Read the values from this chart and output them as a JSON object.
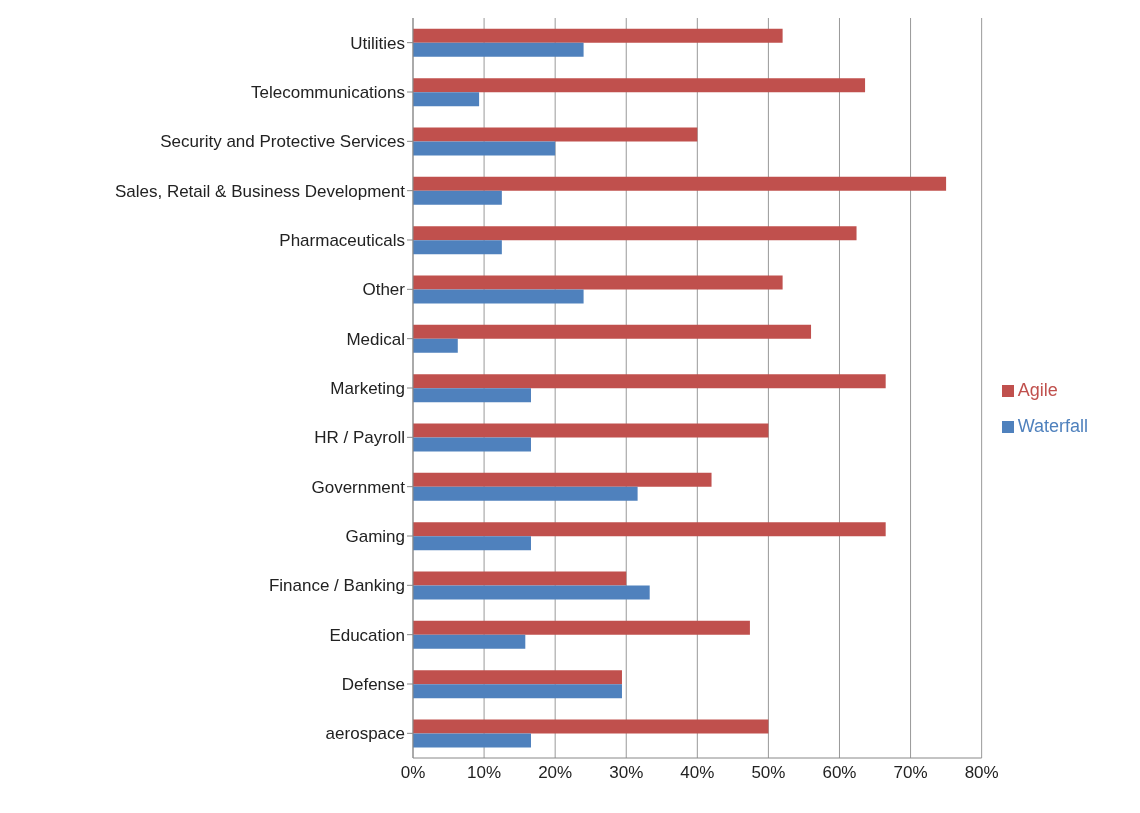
{
  "chart_data": {
    "type": "bar",
    "orientation": "horizontal",
    "categories": [
      "Utilities",
      "Telecommunications",
      "Security and Protective Services",
      "Sales, Retail & Business Development",
      "Pharmaceuticals",
      "Other",
      "Medical",
      "Marketing",
      "HR / Payroll",
      "Government",
      "Gaming",
      "Finance / Banking",
      "Education",
      "Defense",
      "aerospace"
    ],
    "series": [
      {
        "name": "Agile",
        "color": "#c0504d",
        "values": [
          52,
          63.6,
          40,
          75,
          62.4,
          52,
          56,
          66.5,
          50,
          42,
          66.5,
          30,
          47.4,
          29.4,
          50
        ]
      },
      {
        "name": "Waterfall",
        "color": "#4f81bd",
        "values": [
          24,
          9.3,
          20,
          12.5,
          12.5,
          24,
          6.3,
          16.6,
          16.6,
          31.6,
          16.6,
          33.3,
          15.8,
          29.4,
          16.6
        ]
      }
    ],
    "xlim": [
      0,
      80
    ],
    "xticks": [
      {
        "value": 0,
        "label": "0%"
      },
      {
        "value": 10,
        "label": "10%"
      },
      {
        "value": 20,
        "label": "20%"
      },
      {
        "value": 30,
        "label": "30%"
      },
      {
        "value": 40,
        "label": "40%"
      },
      {
        "value": 50,
        "label": "50%"
      },
      {
        "value": 60,
        "label": "60%"
      },
      {
        "value": 70,
        "label": "70%"
      },
      {
        "value": 80,
        "label": "80%"
      }
    ],
    "grid": "x",
    "legend": "right"
  }
}
